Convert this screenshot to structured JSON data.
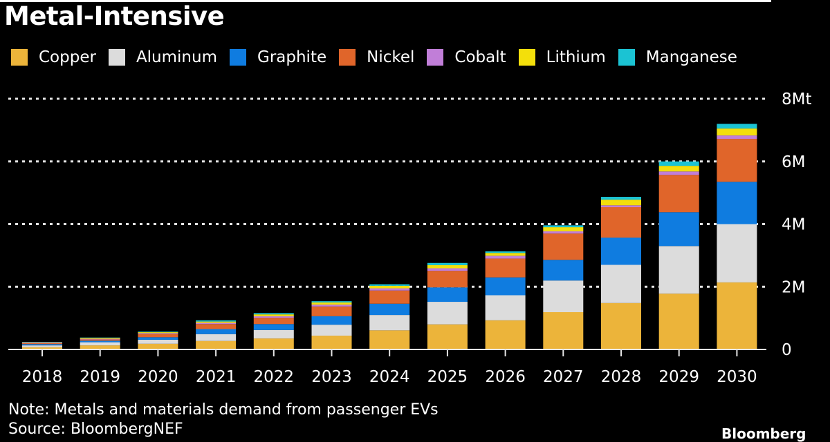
{
  "title": "Metal-Intensive",
  "note": "Note: Metals and materials demand from passenger EVs",
  "source": "Source: BloombergNEF",
  "brand": "Bloomberg",
  "chart_data": {
    "type": "bar",
    "stacked": true,
    "title": "Metal-Intensive",
    "xlabel": "",
    "ylabel": "",
    "unit": "Mt",
    "ylim": [
      0,
      8
    ],
    "yticks": [
      0,
      2,
      4,
      6,
      8
    ],
    "ytick_labels": [
      "0",
      "2M",
      "4M",
      "6M",
      "8Mt"
    ],
    "grid": true,
    "legend_position": "top-left",
    "categories": [
      "2018",
      "2019",
      "2020",
      "2021",
      "2022",
      "2023",
      "2024",
      "2025",
      "2026",
      "2027",
      "2028",
      "2029",
      "2030"
    ],
    "series": [
      {
        "name": "Copper",
        "color": "#ecb43a",
        "values": [
          0.07,
          0.13,
          0.18,
          0.27,
          0.35,
          0.44,
          0.61,
          0.8,
          0.93,
          1.19,
          1.48,
          1.78,
          2.14
        ]
      },
      {
        "name": "Aluminum",
        "color": "#dcdcdc",
        "values": [
          0.06,
          0.1,
          0.13,
          0.22,
          0.27,
          0.35,
          0.49,
          0.72,
          0.8,
          1.01,
          1.22,
          1.52,
          1.86
        ]
      },
      {
        "name": "Graphite",
        "color": "#0f7ce0",
        "values": [
          0.04,
          0.05,
          0.08,
          0.16,
          0.19,
          0.27,
          0.36,
          0.46,
          0.57,
          0.66,
          0.87,
          1.08,
          1.35
        ]
      },
      {
        "name": "Nickel",
        "color": "#e0652a",
        "values": [
          0.03,
          0.04,
          0.1,
          0.16,
          0.2,
          0.31,
          0.42,
          0.53,
          0.6,
          0.84,
          0.97,
          1.19,
          1.37
        ]
      },
      {
        "name": "Cobalt",
        "color": "#c17ed8",
        "values": [
          0.02,
          0.02,
          0.03,
          0.04,
          0.05,
          0.06,
          0.07,
          0.08,
          0.09,
          0.07,
          0.06,
          0.11,
          0.11
        ]
      },
      {
        "name": "Lithium",
        "color": "#f3df0b",
        "values": [
          0.01,
          0.03,
          0.03,
          0.04,
          0.06,
          0.07,
          0.08,
          0.1,
          0.09,
          0.13,
          0.18,
          0.18,
          0.22
        ]
      },
      {
        "name": "Manganese",
        "color": "#1bc3d3",
        "values": [
          0.01,
          0.01,
          0.02,
          0.04,
          0.04,
          0.04,
          0.05,
          0.07,
          0.05,
          0.06,
          0.09,
          0.14,
          0.15
        ]
      }
    ]
  }
}
